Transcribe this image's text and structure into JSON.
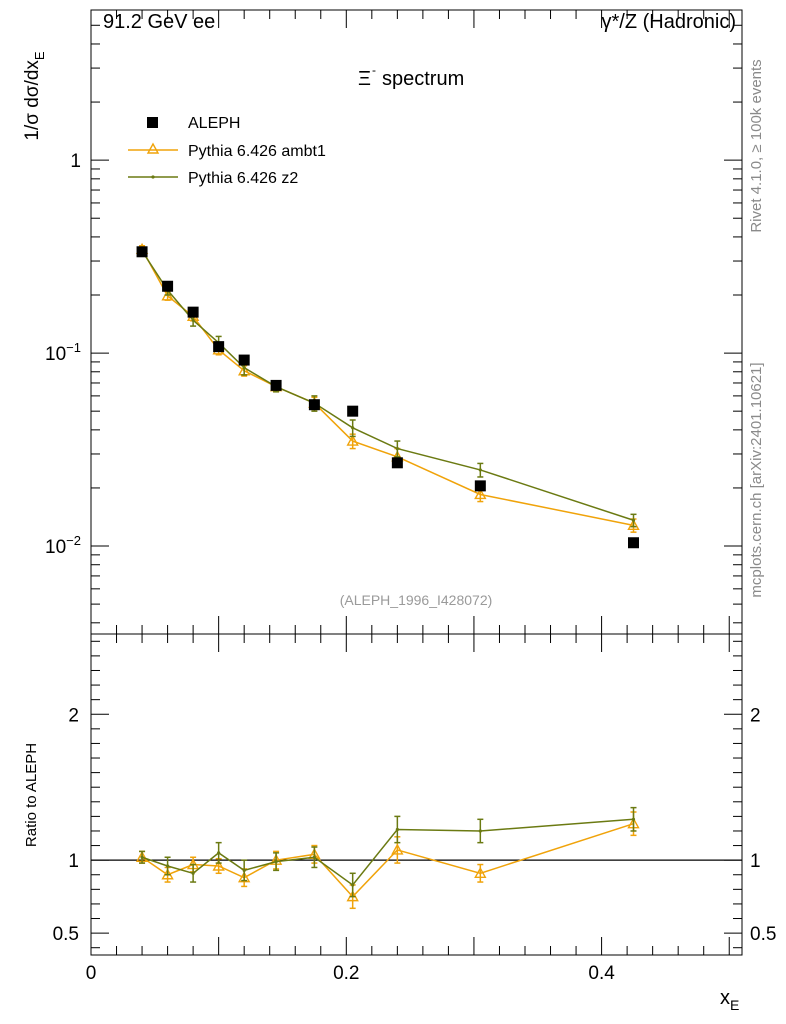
{
  "header": {
    "left": "91.2 GeV ee",
    "right": "γ*/Z (Hadronic)"
  },
  "side_labels": {
    "rivet": "Rivet 4.1.0, ≥ 100k events",
    "mcplots": "mcplots.cern.ch [arXiv:2401.10621]"
  },
  "chart_data": [
    {
      "type": "scatter",
      "panel": "main",
      "title": "Ξ⁻ spectrum",
      "title_main": "Ξ",
      "title_sup": "-",
      "ylabel": "1/σ  dσ/dx_E",
      "ylabel_main": "1/σ  dσ/dx",
      "ylabel_sub": "E",
      "yscale": "log",
      "ylim": [
        0.0035,
        6
      ],
      "xlim": [
        0,
        0.51
      ],
      "yticks": [
        {
          "value": 1,
          "label": "1",
          "mant": "1",
          "exp": ""
        },
        {
          "value": 0.1,
          "label": "10^-1",
          "mant": "10",
          "exp": "−1"
        },
        {
          "value": 0.01,
          "label": "10^-2",
          "mant": "10",
          "exp": "−2"
        }
      ],
      "reference": "(ALEPH_1996_I428072)",
      "legend_position": "top-left",
      "series": [
        {
          "name": "ALEPH",
          "kind": "data",
          "color": "#000000",
          "x": [
            0.04,
            0.06,
            0.08,
            0.1,
            0.12,
            0.145,
            0.175,
            0.205,
            0.24,
            0.305,
            0.425
          ],
          "y": [
            0.335,
            0.222,
            0.163,
            0.108,
            0.092,
            0.068,
            0.054,
            0.05,
            0.027,
            0.0205,
            0.0104
          ]
        },
        {
          "name": "Pythia 6.426 ambt1",
          "kind": "mc",
          "color": "#f0a30a",
          "marker": "triangle",
          "x": [
            0.04,
            0.06,
            0.08,
            0.1,
            0.12,
            0.145,
            0.175,
            0.205,
            0.24,
            0.305,
            0.425
          ],
          "y": [
            0.345,
            0.198,
            0.155,
            0.104,
            0.081,
            0.067,
            0.055,
            0.035,
            0.029,
            0.0185,
            0.0128
          ],
          "yerr": [
            0.015,
            0.01,
            0.008,
            0.006,
            0.005,
            0.004,
            0.004,
            0.003,
            0.003,
            0.0015,
            0.001
          ]
        },
        {
          "name": "Pythia 6.426 z2",
          "kind": "mc",
          "color": "#6b7a12",
          "marker": "dot",
          "x": [
            0.04,
            0.06,
            0.08,
            0.1,
            0.12,
            0.145,
            0.175,
            0.205,
            0.24,
            0.305,
            0.425
          ],
          "y": [
            0.338,
            0.212,
            0.148,
            0.113,
            0.084,
            0.067,
            0.055,
            0.041,
            0.032,
            0.0248,
            0.0136
          ],
          "yerr": [
            0.015,
            0.012,
            0.01,
            0.009,
            0.007,
            0.004,
            0.005,
            0.004,
            0.003,
            0.002,
            0.001
          ]
        }
      ]
    },
    {
      "type": "line",
      "panel": "ratio",
      "ylabel": "Ratio to ALEPH",
      "xlabel": "x_E",
      "xlabel_main": "x",
      "xlabel_sub": "E",
      "ylim": [
        0.35,
        2.55
      ],
      "xlim": [
        0,
        0.51
      ],
      "yticks": [
        {
          "value": 0.5,
          "label": "0.5"
        },
        {
          "value": 1,
          "label": "1"
        },
        {
          "value": 2,
          "label": "2"
        }
      ],
      "xticks": [
        {
          "value": 0,
          "label": "0"
        },
        {
          "value": 0.2,
          "label": "0.2"
        },
        {
          "value": 0.4,
          "label": "0.4"
        }
      ],
      "reference_line": 1,
      "series": [
        {
          "name": "Pythia 6.426 ambt1",
          "color": "#f0a30a",
          "marker": "triangle",
          "x": [
            0.04,
            0.06,
            0.08,
            0.1,
            0.12,
            0.145,
            0.175,
            0.205,
            0.24,
            0.305,
            0.425
          ],
          "y": [
            1.02,
            0.9,
            0.97,
            0.96,
            0.88,
            1.0,
            1.04,
            0.75,
            1.07,
            0.91,
            1.25
          ],
          "yerr": [
            0.04,
            0.05,
            0.05,
            0.05,
            0.06,
            0.06,
            0.06,
            0.08,
            0.09,
            0.06,
            0.08
          ]
        },
        {
          "name": "Pythia 6.426 z2",
          "color": "#6b7a12",
          "marker": "dot",
          "x": [
            0.04,
            0.06,
            0.08,
            0.1,
            0.12,
            0.145,
            0.175,
            0.205,
            0.24,
            0.305,
            0.425
          ],
          "y": [
            1.02,
            0.96,
            0.91,
            1.05,
            0.93,
            0.99,
            1.02,
            0.83,
            1.21,
            1.2,
            1.28
          ],
          "yerr": [
            0.04,
            0.06,
            0.06,
            0.07,
            0.07,
            0.06,
            0.07,
            0.08,
            0.09,
            0.08,
            0.08
          ]
        }
      ]
    }
  ]
}
